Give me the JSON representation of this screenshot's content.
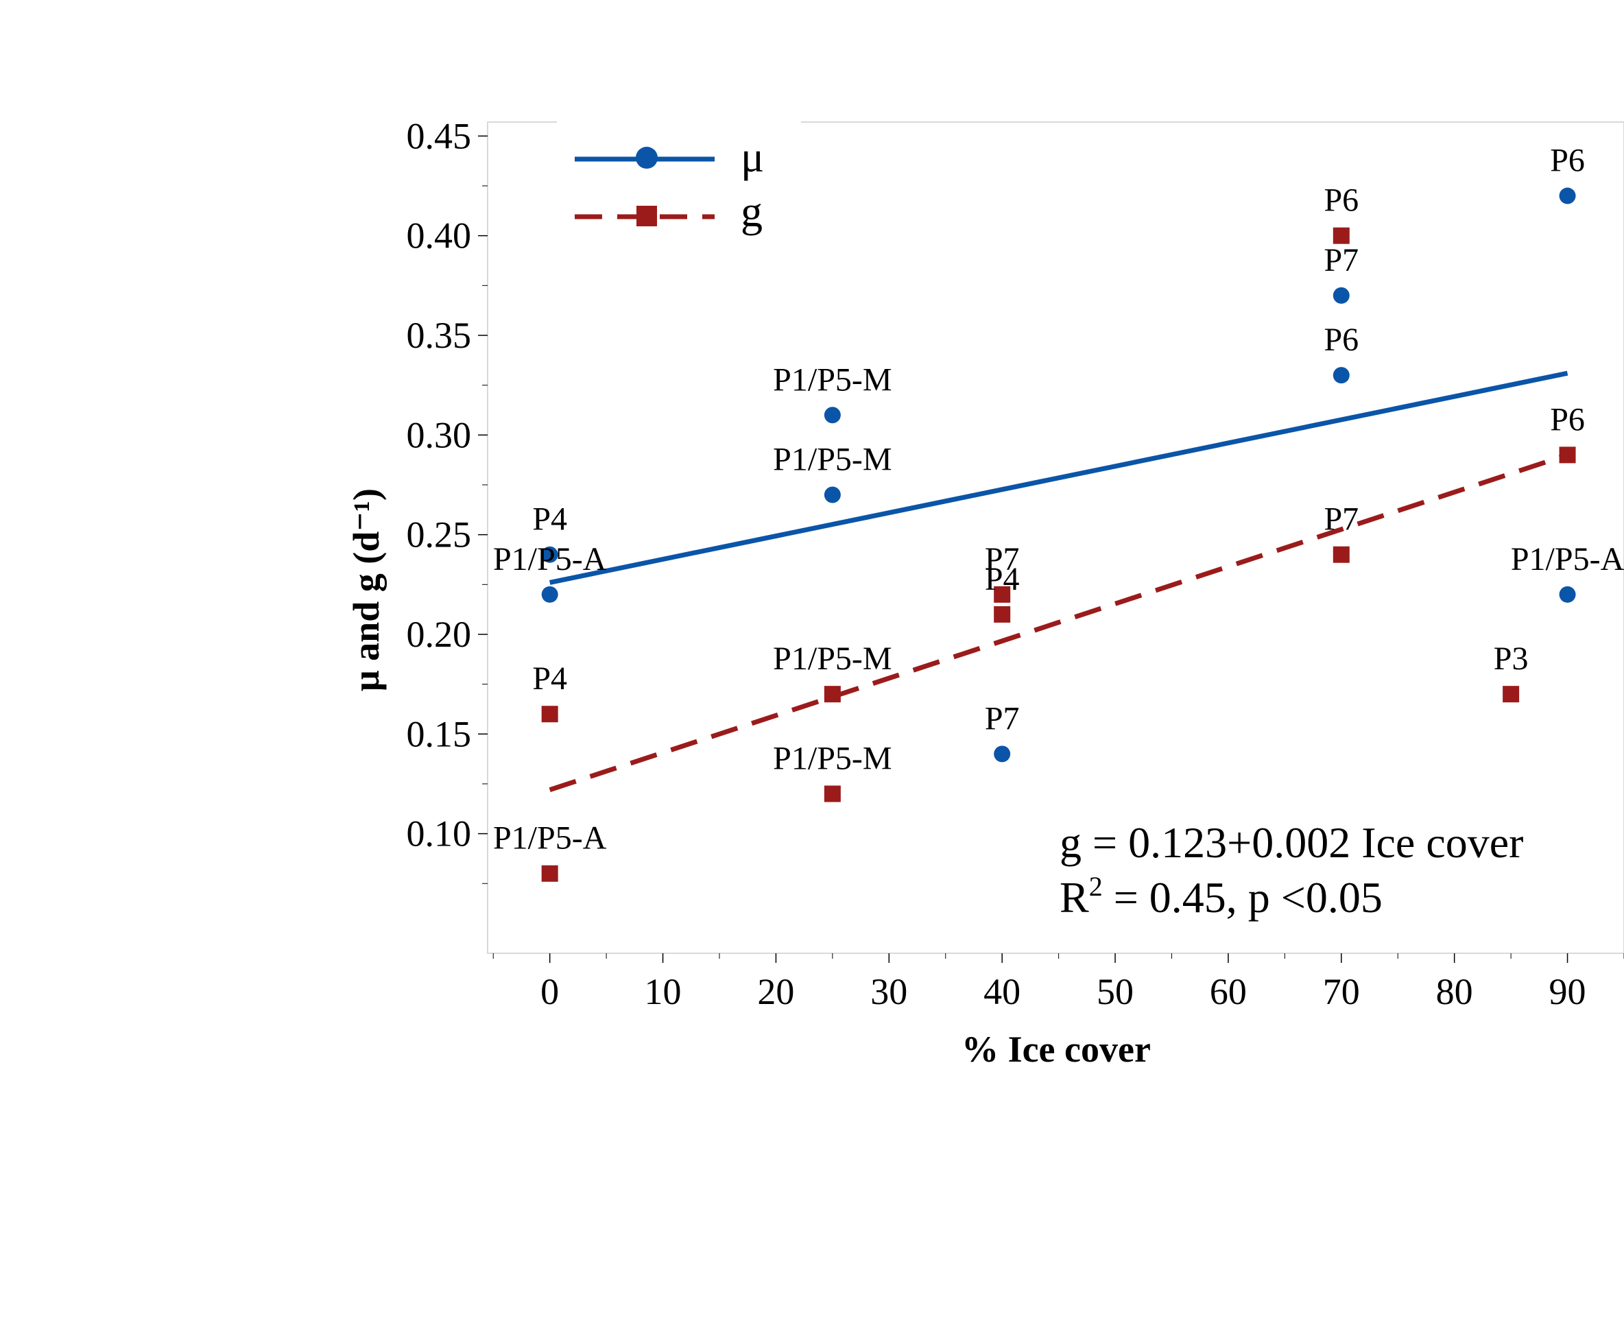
{
  "chart_data": {
    "type": "scatter",
    "xlabel": "% Ice cover",
    "ylabel": "μ and g (d⁻¹)",
    "xlim": [
      -5.5,
      95
    ],
    "ylim": [
      0.04,
      0.457
    ],
    "x_ticks": [
      0,
      10,
      20,
      30,
      40,
      50,
      60,
      70,
      80,
      90
    ],
    "x_tick_labels": [
      "0",
      "10",
      "20",
      "30",
      "40",
      "50",
      "60",
      "70",
      "80",
      "90"
    ],
    "y_ticks": [
      0.1,
      0.15,
      0.2,
      0.25,
      0.3,
      0.35,
      0.4,
      0.45
    ],
    "y_tick_labels": [
      "0.10",
      "0.15",
      "0.20",
      "0.25",
      "0.30",
      "0.35",
      "0.40",
      "0.45"
    ],
    "legend_position": "top-left",
    "series": [
      {
        "name": "μ",
        "color": "#0a55a8",
        "marker": "circle",
        "line": "solid",
        "points": [
          {
            "x": 0,
            "y": 0.24,
            "label": "P4"
          },
          {
            "x": 0,
            "y": 0.22,
            "label": "P1/P5-A"
          },
          {
            "x": 25,
            "y": 0.31,
            "label": "P1/P5-M"
          },
          {
            "x": 25,
            "y": 0.27,
            "label": "P1/P5-M"
          },
          {
            "x": 40,
            "y": 0.14,
            "label": "P7"
          },
          {
            "x": 70,
            "y": 0.37,
            "label": "P7"
          },
          {
            "x": 70,
            "y": 0.33,
            "label": "P6"
          },
          {
            "x": 90,
            "y": 0.42,
            "label": "P6"
          },
          {
            "x": 90,
            "y": 0.22,
            "label": "P1/P5-A"
          }
        ],
        "trend": {
          "x": [
            0,
            90
          ],
          "y": [
            0.226,
            0.331
          ]
        }
      },
      {
        "name": "g",
        "color": "#9b1b1b",
        "marker": "square",
        "line": "dashed",
        "points": [
          {
            "x": 0,
            "y": 0.16,
            "label": "P4"
          },
          {
            "x": 0,
            "y": 0.08,
            "label": "P1/P5-A"
          },
          {
            "x": 25,
            "y": 0.17,
            "label": "P1/P5-M"
          },
          {
            "x": 25,
            "y": 0.12,
            "label": "P1/P5-M"
          },
          {
            "x": 40,
            "y": 0.22,
            "label": "P7"
          },
          {
            "x": 40,
            "y": 0.21,
            "label": "P4"
          },
          {
            "x": 70,
            "y": 0.4,
            "label": "P6"
          },
          {
            "x": 70,
            "y": 0.24,
            "label": "P7"
          },
          {
            "x": 85,
            "y": 0.17,
            "label": "P3"
          },
          {
            "x": 90,
            "y": 0.29,
            "label": "P6"
          }
        ],
        "trend": {
          "x": [
            0,
            90
          ],
          "y": [
            0.122,
            0.29
          ]
        }
      }
    ],
    "annotation": {
      "equation": "g = 0.123+0.002 Ice cover",
      "r2_prefix": "R",
      "r2_sup": "2",
      "r2_rest": " = 0.45, p <0.05"
    }
  }
}
